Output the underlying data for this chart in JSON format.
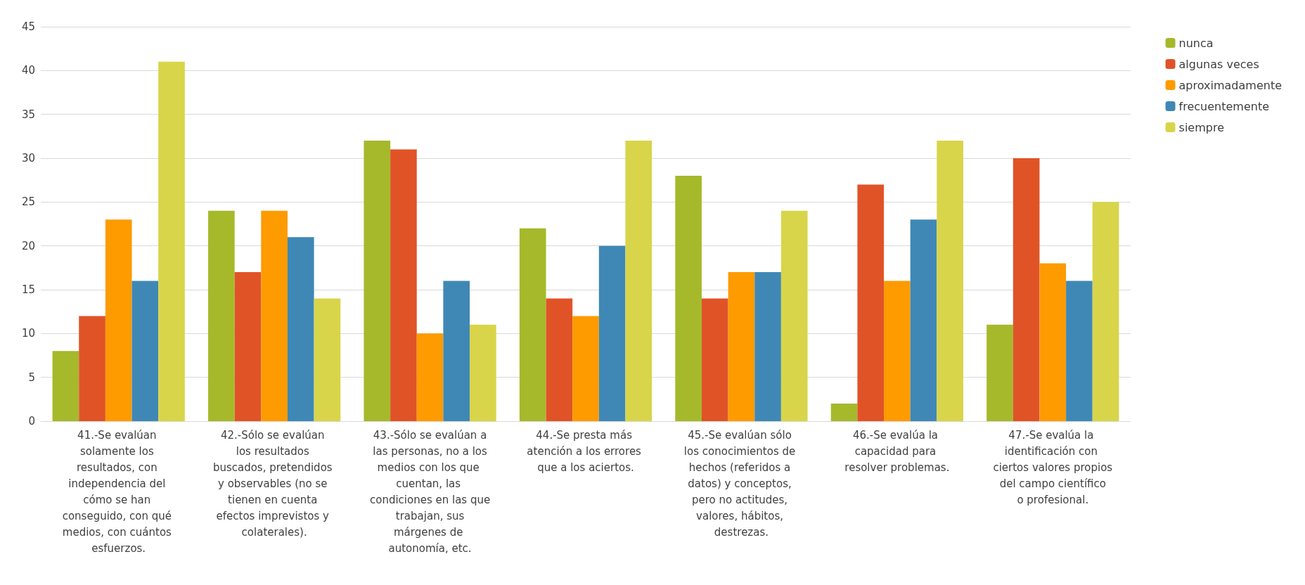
{
  "chart_data": {
    "type": "bar",
    "categories": [
      "41.-Se evalúan solamente los resultados, con independencia del cómo se han conseguido, con qué medios, con cuántos esfuerzos.",
      "42.-Sólo se evalúan los resultados buscados, pretendidos y observables (no se tienen en cuenta efectos imprevistos y colaterales).",
      "43.-Sólo se evalúan a las personas, no a los medios con los que cuentan, las condiciones en las que trabajan, sus márgenes de autonomía, etc.",
      "44.-Se presta más atención a los errores que a los aciertos.",
      "45.-Se evalúan sólo los conocimientos de hechos (referidos a datos) y conceptos, pero no actitudes, valores, hábitos, destrezas.",
      "46.-Se evalúa la capacidad para resolver problemas.",
      "47.-Se evalúa la identificación con ciertos valores propios del campo científico o profesional."
    ],
    "series": [
      {
        "name": "nunca",
        "color": "#a5b92b",
        "values": [
          8,
          24,
          32,
          22,
          28,
          2,
          11
        ]
      },
      {
        "name": "algunas veces",
        "color": "#e05327",
        "values": [
          12,
          17,
          31,
          14,
          14,
          27,
          30
        ]
      },
      {
        "name": "aproximadamente",
        "color": "#fd9b00",
        "values": [
          23,
          24,
          10,
          12,
          17,
          16,
          18
        ]
      },
      {
        "name": "frecuentemente",
        "color": "#3f88b5",
        "values": [
          16,
          21,
          16,
          20,
          17,
          23,
          16
        ]
      },
      {
        "name": "siempre",
        "color": "#d8d54a",
        "values": [
          41,
          14,
          11,
          32,
          24,
          32,
          25
        ]
      }
    ],
    "ylim": [
      0,
      45
    ],
    "yticks": [
      0,
      5,
      10,
      15,
      20,
      25,
      30,
      35,
      40,
      45
    ],
    "grid": "y",
    "legend": "top right"
  }
}
